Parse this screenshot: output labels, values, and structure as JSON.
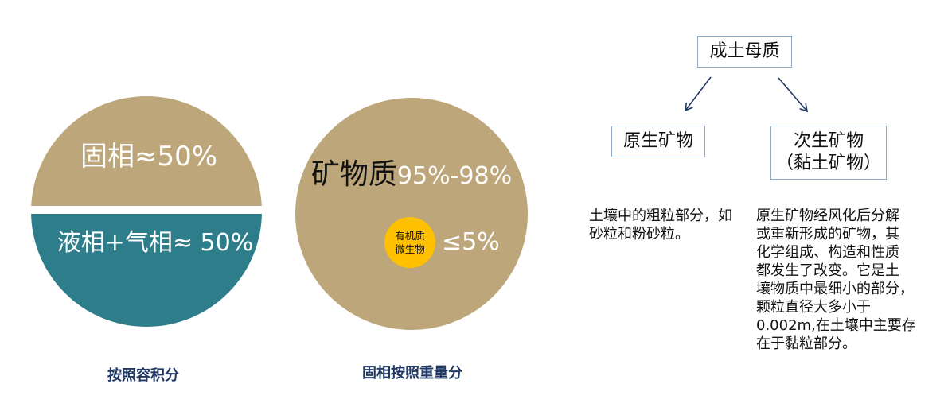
{
  "colors": {
    "solid_tan": "#BDA679",
    "liquid_teal": "#2D7D8A",
    "organic_yellow": "#FFC000",
    "caption_navy": "#1F3864",
    "box_border": "#8EAAC8"
  },
  "volume_circle": {
    "solid_phase": "固相≈50%",
    "liquid_gas_phase": "液相+气相≈ 50%",
    "caption": "按照容积分"
  },
  "weight_circle": {
    "mineral_name": "矿物质",
    "mineral_share": "95%-98%",
    "organic_lines": [
      "有机质",
      "微生物"
    ],
    "organic_share": "≤5%",
    "caption": "固相按照重量分"
  },
  "mineral_tree": {
    "root_label": "成土母质",
    "primary": {
      "label": "原生矿物",
      "description_lines": [
        "土壤中的粗粒部分，如",
        "砂粒和粉砂粒。"
      ]
    },
    "secondary": {
      "label_lines": [
        "次生矿物",
        "（黏土矿物）"
      ],
      "description_lines": [
        "原生矿物经风化后分解",
        "或重新形成的矿物，其",
        "化学组成、构造和性质",
        "都发生了改变。它是土",
        "壤物质中最细小的部分，",
        "颗粒直径大多小于",
        "0.002m,在土壤中主要存",
        "在于黏粒部分。"
      ]
    }
  }
}
